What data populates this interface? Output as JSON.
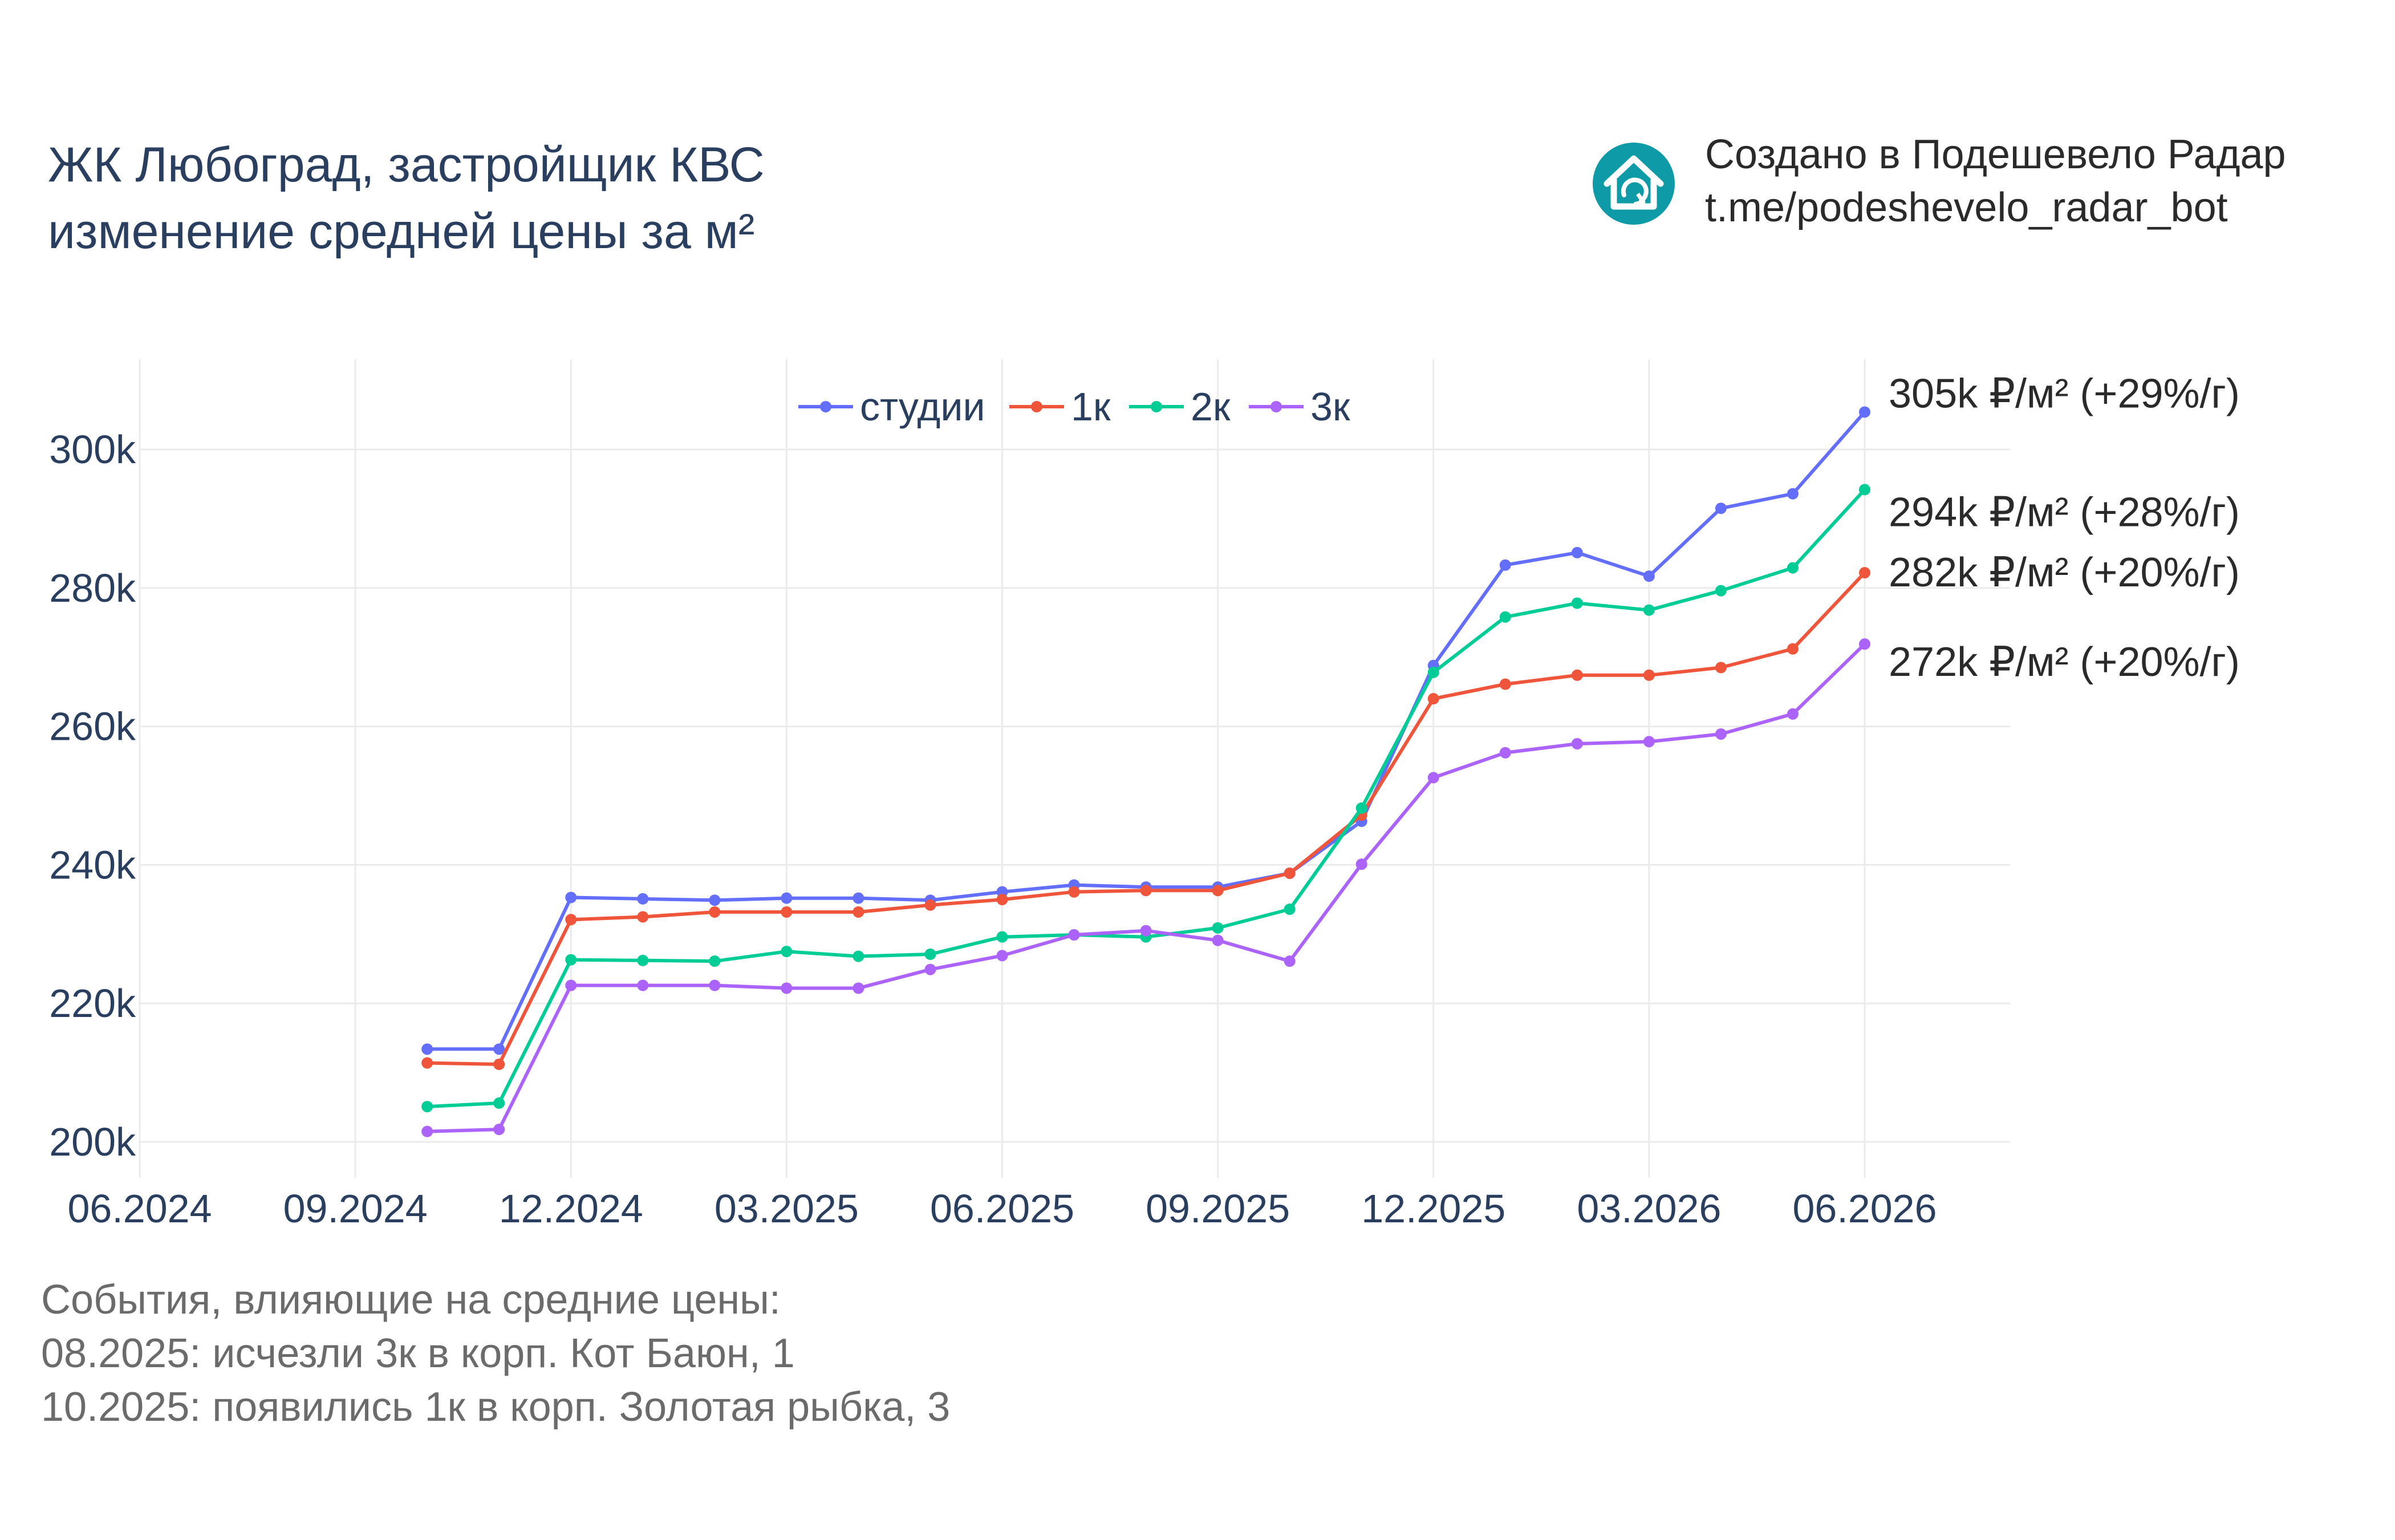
{
  "header": {
    "title_lines": [
      "ЖК Любоград, застройщик КВС",
      "изменение средней цены за м²"
    ],
    "brand_lines": [
      "Создано в Подешевело Радар",
      "t.me/podeshevelo_radar_bot"
    ],
    "logo_icon": "house-refresh-icon",
    "logo_color": "#0e9aa7"
  },
  "chart_data": {
    "type": "line",
    "x": [
      "2024-10",
      "2024-11",
      "2024-12",
      "2025-01",
      "2025-02",
      "2025-03",
      "2025-04",
      "2025-05",
      "2025-06",
      "2025-07",
      "2025-08",
      "2025-09",
      "2025-10",
      "2025-11",
      "2025-12",
      "2026-01",
      "2026-02",
      "2026-03",
      "2026-04",
      "2026-05",
      "2026-06"
    ],
    "series": [
      {
        "name": "студии",
        "color": "#636efa",
        "values": [
          213.4,
          213.4,
          235.3,
          235.1,
          234.9,
          235.2,
          235.2,
          234.9,
          236.1,
          237.1,
          236.8,
          236.8,
          238.8,
          246.3,
          268.8,
          283.3,
          285.1,
          281.7,
          291.5,
          293.6,
          305.4
        ],
        "end_label": "305k ₽/м² (+29%/г)"
      },
      {
        "name": "1к",
        "color": "#ef553b",
        "values": [
          211.4,
          211.2,
          232.1,
          232.5,
          233.2,
          233.2,
          233.2,
          234.2,
          235.0,
          236.1,
          236.3,
          236.3,
          238.8,
          247.2,
          264.0,
          266.1,
          267.4,
          267.4,
          268.5,
          271.2,
          282.2
        ],
        "end_label": "282k ₽/м² (+20%/г)"
      },
      {
        "name": "2к",
        "color": "#00cc96",
        "values": [
          205.1,
          205.6,
          226.3,
          226.2,
          226.1,
          227.5,
          226.8,
          227.1,
          229.6,
          229.9,
          229.6,
          230.9,
          233.6,
          248.2,
          267.8,
          275.8,
          277.8,
          276.8,
          279.6,
          282.9,
          294.2
        ],
        "end_label": "294k ₽/м² (+28%/г)"
      },
      {
        "name": "3к",
        "color": "#ab63fa",
        "values": [
          201.5,
          201.8,
          222.6,
          222.6,
          222.6,
          222.2,
          222.2,
          224.9,
          226.9,
          229.9,
          230.5,
          229.1,
          226.1,
          240.1,
          252.6,
          256.2,
          257.5,
          257.8,
          258.9,
          261.8,
          271.9
        ],
        "end_label": "272k ₽/м² (+20%/г)"
      }
    ],
    "x_ticks": [
      "06.2024",
      "09.2024",
      "12.2024",
      "03.2025",
      "06.2025",
      "09.2025",
      "12.2025",
      "03.2026",
      "06.2026"
    ],
    "y_ticks": [
      "200k",
      "220k",
      "240k",
      "260k",
      "280k",
      "300k"
    ],
    "y_tick_values": [
      200,
      220,
      240,
      260,
      280,
      300
    ],
    "xlim": [
      "2024-06",
      "2026-06"
    ],
    "ylim": [
      196,
      312
    ],
    "grid": true,
    "legend_placement": "top-center"
  },
  "events": {
    "lines": [
      "События, влияющие на средние цены:",
      "08.2025: исчезли 3к в корп. Кот Баюн, 1",
      "10.2025: появились 1к в корп. Золотая рыбка, 3"
    ]
  }
}
